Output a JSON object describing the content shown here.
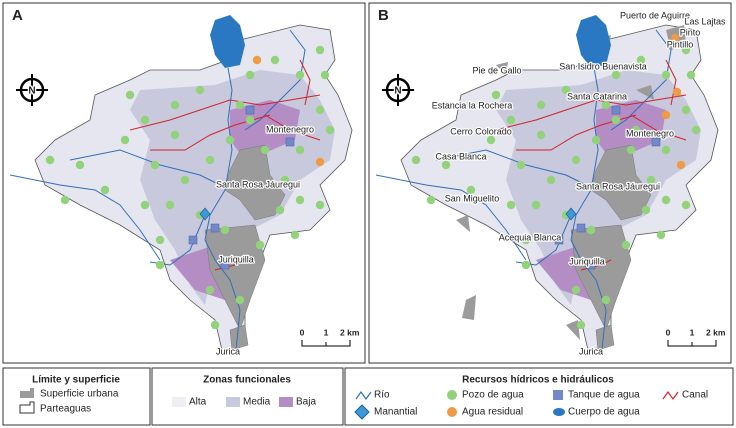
{
  "panels": [
    {
      "label": "A",
      "north": "N",
      "scale": [
        "0",
        "1",
        "2 km"
      ],
      "places": [
        "Montenegro",
        "Santa Rosa Jáuregui",
        "Juriquilla",
        "Jurica"
      ]
    },
    {
      "label": "B",
      "north": "N",
      "scale": [
        "0",
        "1",
        "2 km"
      ],
      "places": [
        "Puerto de Aguirre",
        "Las Lajtas",
        "Pinto",
        "Pintillo",
        "Pie de Gallo",
        "San Isidro Buenavista",
        "Estancia la Rochera",
        "Santa Catarina",
        "Cerro Colorado",
        "Montenegro",
        "Casa Blanca",
        "Santa Rosa Jáuregui",
        "San Miguelito",
        "Acequia Blanca",
        "Juriquilla",
        "Jurica"
      ]
    }
  ],
  "legend": {
    "surface": {
      "title": "Límite y superficie",
      "items": [
        "Superficie urbana",
        "Parteaguas"
      ]
    },
    "zones": {
      "title": "Zonas funcionales",
      "items": [
        "Alta",
        "Media",
        "Baja"
      ]
    },
    "resources": {
      "title": "Recursos hídricos e hidráulicos",
      "items": [
        "Río",
        "Pozo de agua",
        "Tanque de agua",
        "Canal",
        "Manantial",
        "Agua residual",
        "Cuerpo de agua"
      ]
    }
  }
}
